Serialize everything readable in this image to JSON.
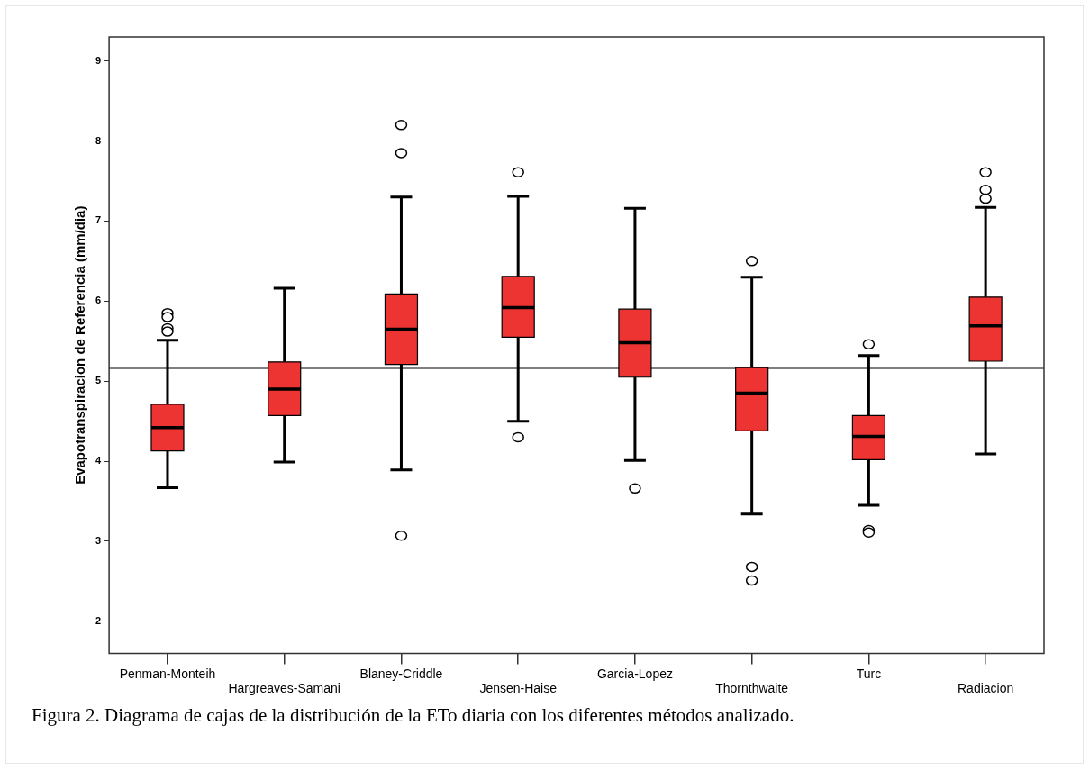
{
  "chart_data": {
    "type": "box",
    "ylabel": "Evapotranspiracion de Referencia (mm/dia)",
    "categories": [
      "Penman-Monteih",
      "Hargreaves-Samani",
      "Blaney-Criddle",
      "Jensen-Haise",
      "Garcia-Lopez",
      "Thornthwaite",
      "Turc",
      "Radiacion"
    ],
    "color": "#ee3333",
    "boxes": [
      {
        "low": 3.67,
        "q1": 4.13,
        "median": 4.42,
        "q3": 4.71,
        "high": 5.51,
        "outliers": [
          5.85,
          5.8,
          5.66,
          5.62
        ]
      },
      {
        "low": 3.99,
        "q1": 4.57,
        "median": 4.9,
        "q3": 5.24,
        "high": 6.16
      },
      {
        "low": 3.89,
        "q1": 5.21,
        "median": 5.65,
        "q3": 6.09,
        "high": 7.3,
        "outliers": [
          8.2,
          7.85,
          3.07
        ]
      },
      {
        "low": 4.5,
        "q1": 5.55,
        "median": 5.92,
        "q3": 6.31,
        "high": 7.31,
        "outliers": [
          7.61,
          4.3
        ]
      },
      {
        "low": 4.01,
        "q1": 5.05,
        "median": 5.48,
        "q3": 5.9,
        "high": 7.16,
        "outliers": [
          3.66
        ]
      },
      {
        "low": 3.34,
        "q1": 4.38,
        "median": 4.85,
        "q3": 5.17,
        "high": 6.3,
        "outliers": [
          6.5,
          2.68,
          2.51
        ]
      },
      {
        "low": 3.45,
        "q1": 4.02,
        "median": 4.31,
        "q3": 4.57,
        "high": 5.32,
        "outliers": [
          5.46,
          3.14,
          3.11
        ]
      },
      {
        "low": 4.09,
        "q1": 5.25,
        "median": 5.69,
        "q3": 6.05,
        "high": 7.17,
        "outliers": [
          7.61,
          7.39,
          7.28
        ]
      }
    ],
    "ylim": [
      1.6,
      9.3
    ],
    "yticks": [
      2,
      3,
      4,
      5,
      6,
      7,
      8,
      9
    ],
    "ref_lines": [
      {
        "axis": "y",
        "value": 5.16,
        "color": "#555555"
      }
    ],
    "annotations": [
      "Figura 2. Diagrama de cajas de la distribución de la ETo diaria con los diferentes métodos analizado."
    ]
  }
}
